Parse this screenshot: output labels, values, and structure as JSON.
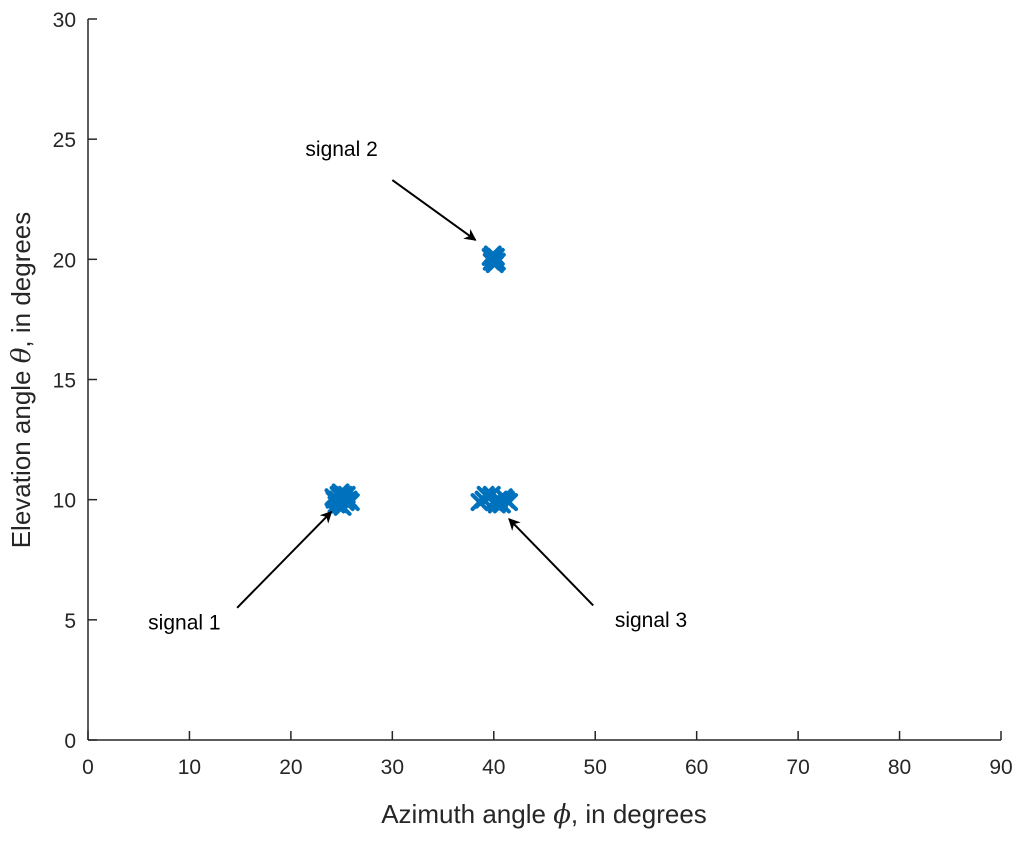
{
  "chart_data": {
    "type": "scatter",
    "title": "",
    "xlabel": {
      "pre": "Azimuth angle ",
      "sym": "ϕ",
      "post": ", in degrees"
    },
    "ylabel": {
      "pre": "Elevation angle ",
      "sym": "θ",
      "post": ", in degrees"
    },
    "xlim": [
      0,
      90
    ],
    "ylim": [
      0,
      30
    ],
    "xticks": [
      0,
      10,
      20,
      30,
      40,
      50,
      60,
      70,
      80,
      90
    ],
    "yticks": [
      0,
      5,
      10,
      15,
      20,
      25,
      30
    ],
    "grid": false,
    "marker": "x",
    "series": [
      {
        "color": "#0072BD",
        "points": [
          [
            24.6,
            10.0
          ],
          [
            25.0,
            10.1
          ],
          [
            25.4,
            9.9
          ],
          [
            24.8,
            9.8
          ],
          [
            25.2,
            10.2
          ],
          [
            25.7,
            10.0
          ],
          [
            24.3,
            10.0
          ],
          [
            25.1,
            9.7
          ],
          [
            24.9,
            10.3
          ],
          [
            25.5,
            10.2
          ],
          [
            24.5,
            9.8
          ],
          [
            25.9,
            9.9
          ],
          [
            24.2,
            10.1
          ],
          [
            25.3,
            10.0
          ],
          [
            24.7,
            10.2
          ],
          [
            40.0,
            20.0
          ],
          [
            40.2,
            20.1
          ],
          [
            39.8,
            19.9
          ],
          [
            40.1,
            19.8
          ],
          [
            39.9,
            20.2
          ],
          [
            40.3,
            19.9
          ],
          [
            39.7,
            20.1
          ],
          [
            39.0,
            10.0
          ],
          [
            39.5,
            10.1
          ],
          [
            40.0,
            9.9
          ],
          [
            40.5,
            10.0
          ],
          [
            41.0,
            10.1
          ],
          [
            41.5,
            9.9
          ],
          [
            38.6,
            9.9
          ],
          [
            39.2,
            10.2
          ],
          [
            40.8,
            9.8
          ],
          [
            41.2,
            10.0
          ],
          [
            39.8,
            10.2
          ],
          [
            40.3,
            9.8
          ]
        ]
      }
    ],
    "annotations": [
      {
        "text": "signal 1",
        "label_xy": [
          9.5,
          4.6
        ],
        "tail": [
          14.7,
          5.5
        ],
        "head": [
          24.0,
          9.5
        ]
      },
      {
        "text": "signal 2",
        "label_xy": [
          25.0,
          24.3
        ],
        "tail": [
          30.0,
          23.3
        ],
        "head": [
          38.2,
          20.8
        ]
      },
      {
        "text": "signal 3",
        "label_xy": [
          55.5,
          4.7
        ],
        "tail": [
          49.8,
          5.6
        ],
        "head": [
          41.5,
          9.2
        ]
      }
    ]
  }
}
